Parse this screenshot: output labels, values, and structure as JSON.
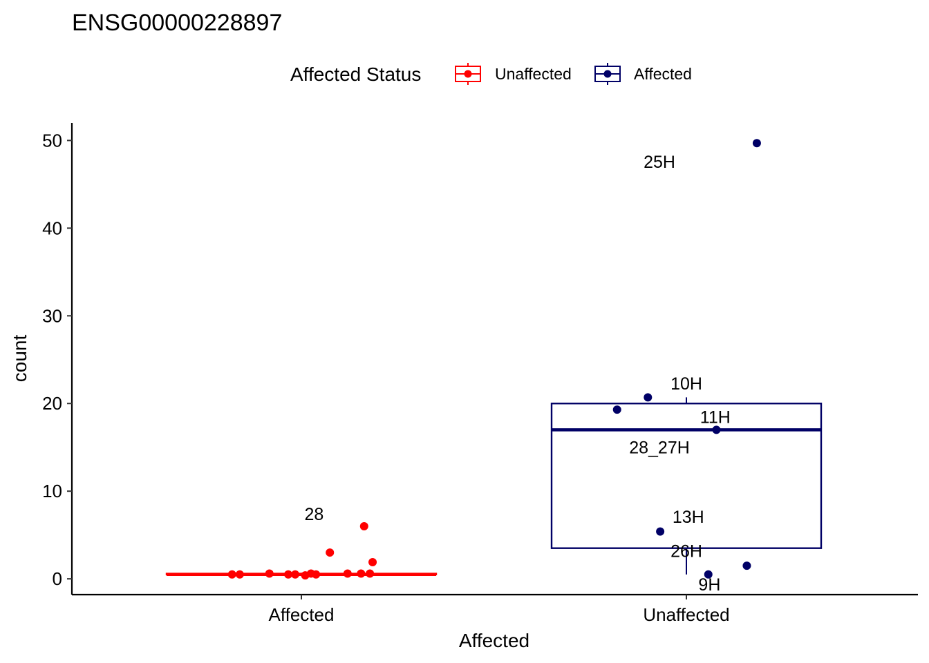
{
  "chart_data": {
    "type": "box",
    "title": "ENSG00000228897",
    "xlabel": "Affected",
    "ylabel": "count",
    "ylim": [
      -1.8,
      52
    ],
    "yticks": [
      0,
      10,
      20,
      30,
      40,
      50
    ],
    "categories": [
      "Affected",
      "Unaffected"
    ],
    "grid": false,
    "legend": {
      "title": "Affected Status",
      "position": "top",
      "entries": [
        {
          "label": "Unaffected",
          "color": "#ff0000"
        },
        {
          "label": "Affected",
          "color": "#000066"
        }
      ]
    },
    "groups": [
      {
        "category": "Affected",
        "status": "Unaffected",
        "color": "#ff0000",
        "box": {
          "q1": 0.5,
          "median": 0.5,
          "q3": 0.6,
          "whisker_low": 0.4,
          "whisker_high": 0.7
        },
        "points": [
          {
            "y": 0.5,
            "jitter": -0.18
          },
          {
            "y": 0.5,
            "jitter": -0.16
          },
          {
            "y": 0.6,
            "jitter": -0.083
          },
          {
            "y": 0.5,
            "jitter": -0.034
          },
          {
            "y": 0.5,
            "jitter": -0.016
          },
          {
            "y": 0.4,
            "jitter": 0.01
          },
          {
            "y": 0.6,
            "jitter": 0.025
          },
          {
            "y": 0.5,
            "jitter": 0.038
          },
          {
            "y": 0.6,
            "jitter": 0.12
          },
          {
            "y": 0.6,
            "jitter": 0.155
          },
          {
            "y": 0.6,
            "jitter": 0.178
          },
          {
            "y": 3.0,
            "jitter": 0.074
          },
          {
            "y": 6.0,
            "jitter": 0.163
          },
          {
            "y": 1.9,
            "jitter": 0.185
          }
        ],
        "labels": [
          {
            "text": "28",
            "y": 7.4,
            "dx": 0.033
          }
        ]
      },
      {
        "category": "Unaffected",
        "status": "Affected",
        "color": "#000066",
        "box": {
          "q1": 3.5,
          "median": 17.0,
          "q3": 20.0,
          "whisker_low": 0.5,
          "whisker_high": 20.7
        },
        "points": [
          {
            "y": 19.3,
            "jitter": -0.18
          },
          {
            "y": 20.7,
            "jitter": -0.1
          },
          {
            "y": 17.0,
            "jitter": 0.078
          },
          {
            "y": 5.4,
            "jitter": -0.068
          },
          {
            "y": 0.5,
            "jitter": 0.057
          },
          {
            "y": 1.5,
            "jitter": 0.157
          },
          {
            "y": 49.7,
            "jitter": 0.183
          }
        ],
        "labels": [
          {
            "text": "25H",
            "y": 47.6,
            "dx": -0.07
          },
          {
            "text": "10H",
            "y": 22.3,
            "dx": 0.0
          },
          {
            "text": "11H",
            "y": 18.5,
            "dx": 0.075
          },
          {
            "text": "28_27H",
            "y": 15.0,
            "dx": -0.07
          },
          {
            "text": "13H",
            "y": 7.1,
            "dx": 0.005
          },
          {
            "text": "26H",
            "y": 3.2,
            "dx": 0.0
          },
          {
            "text": "9H",
            "y": -0.6,
            "dx": 0.06
          }
        ]
      }
    ]
  }
}
